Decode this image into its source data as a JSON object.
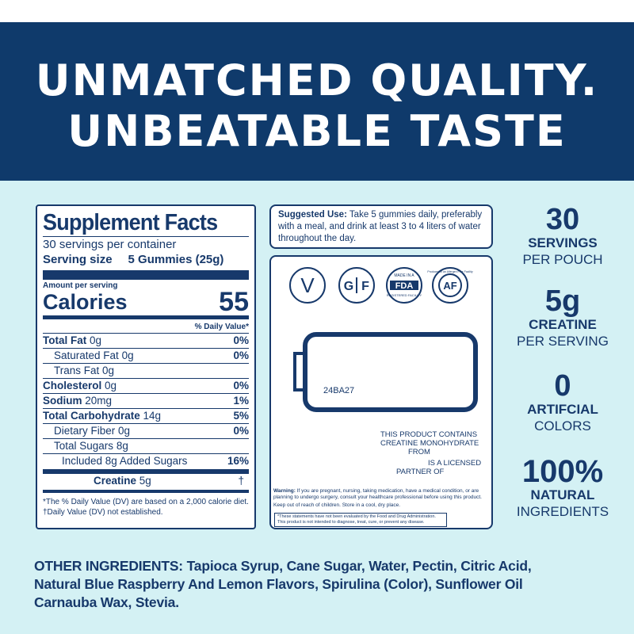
{
  "headline": [
    "UNMATCHED QUALITY.",
    "UNBEATABLE TASTE"
  ],
  "facts": {
    "title": "Supplement Facts",
    "servings_per_container": "30 servings per container",
    "serving_size_label": "Serving size",
    "serving_size_value": "5 Gummies (25g)",
    "amount_per_serving": "Amount per serving",
    "calories_label": "Calories",
    "calories_value": "55",
    "dv_header": "% Daily Value*",
    "rows": [
      {
        "name": "Total Fat",
        "amount": "0g",
        "dv": "0%"
      },
      {
        "name": "Saturated Fat",
        "amount": "0g",
        "dv": "0%"
      },
      {
        "name": "Trans Fat",
        "amount": "0g"
      },
      {
        "name": "Cholesterol",
        "amount": "0g",
        "dv": "0%"
      },
      {
        "name": "Sodium",
        "amount": "20mg",
        "dv": "1%"
      },
      {
        "name": "Total Carbohydrate",
        "amount": "14g",
        "dv": "5%"
      },
      {
        "name": "Dietary Fiber",
        "amount": "0g",
        "dv": "0%"
      },
      {
        "name": "Total Sugars",
        "amount": "8g"
      },
      {
        "name": "Included 8g Added Sugars",
        "dv": "16%"
      },
      {
        "name": "Creatine",
        "amount": "5g",
        "dv": "†"
      }
    ],
    "footnotes": [
      "*The % Daily Value (DV) are based on a 2,000 calorie diet.",
      "†Daily Value (DV) not established."
    ]
  },
  "suggested_use": {
    "label": "Suggested Use:",
    "text": "Take 5 gummies daily, preferably with a meal, and drink at least 3 to 4 liters of water throughout the day."
  },
  "badges": {
    "vegan": "V",
    "gluten_free": [
      "G",
      "F"
    ],
    "fda": {
      "top": "MADE IN A",
      "mid": "FDA",
      "bottom": "REGISTERED FACILITY"
    },
    "allergen": {
      "mid": "AF",
      "ring": "Produced in an Allergen Free Facility"
    }
  },
  "lot_code": "24BA27",
  "licensing": [
    "THIS PRODUCT CONTAINS",
    "CREATINE MONOHYDRATE",
    "FROM",
    "IS A LICENSED",
    "PARTNER OF"
  ],
  "warning": {
    "label": "Warning:",
    "text": "If you are pregnant, nursing, taking medication, have a medical condition, or are planning to undergo surgery, consult your healthcare professional before using this product.",
    "storage": "Keep out of reach of children. Store in a cool, dry place."
  },
  "disclaimer": [
    "*These statements have not been evaluated by the Food and Drug Administration.",
    "This product is not intended to diagnose, treat, cure, or prevent any disease."
  ],
  "stats": [
    {
      "value": "30",
      "label": "SERVINGS",
      "sub": "PER POUCH"
    },
    {
      "value": "5g",
      "label": "CREATINE",
      "sub": "PER SERVING"
    },
    {
      "value": "0",
      "label": "ARTIFCIAL",
      "sub": "COLORS"
    },
    {
      "value": "100%",
      "label": "NATURAL",
      "sub": "INGREDIENTS"
    }
  ],
  "ingredients": {
    "label": "OTHER INGREDIENTS:",
    "lines": [
      "Tapioca Syrup, Cane Sugar, Water, Pectin, Citric Acid,",
      "Natural Blue Raspberry And Lemon Flavors, Spirulina (Color), Sunflower Oil",
      "Carnauba Wax, Stevia."
    ]
  }
}
